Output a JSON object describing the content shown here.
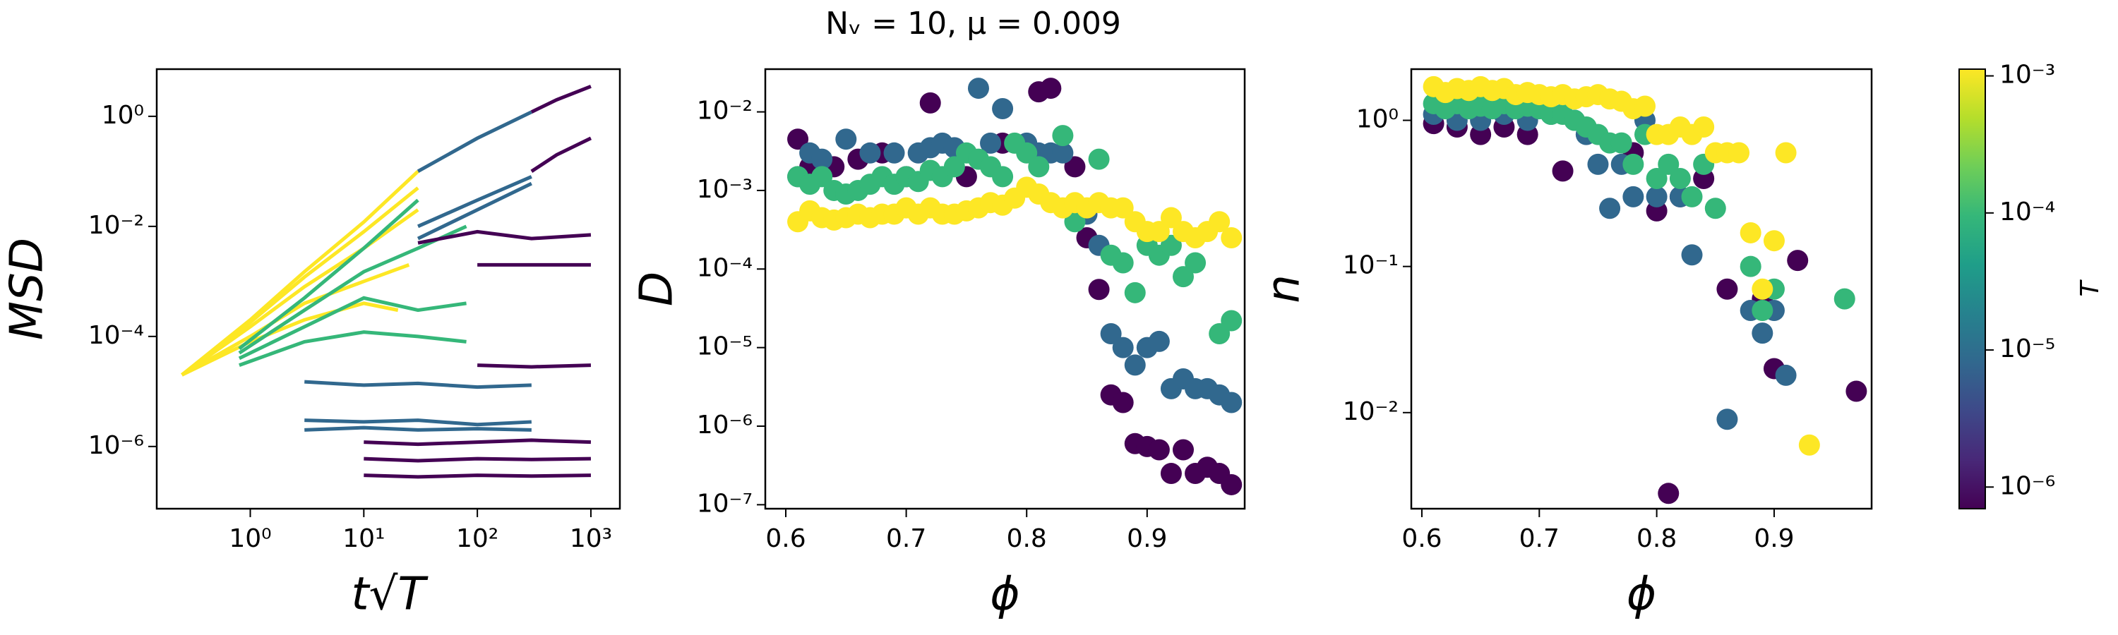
{
  "chart_data": [
    {
      "type": "line",
      "xlabel": "t√T",
      "ylabel": "MSD",
      "xscale": "log",
      "yscale": "log",
      "xlim": [
        0.15,
        1800
      ],
      "ylim": [
        7.4e-08,
        7.2
      ],
      "xticks": [
        {
          "value": 1,
          "label": "10⁰"
        },
        {
          "value": 10,
          "label": "10¹"
        },
        {
          "value": 100,
          "label": "10²"
        },
        {
          "value": 1000,
          "label": "10³"
        }
      ],
      "yticks": [
        {
          "value": 1e-06,
          "label": "10⁻⁶"
        },
        {
          "value": 0.0001,
          "label": "10⁻⁴"
        },
        {
          "value": 0.01,
          "label": "10⁻²"
        },
        {
          "value": 1,
          "label": "10⁰"
        }
      ],
      "series": [
        {
          "color": "#fde725",
          "x": [
            0.25,
            1,
            3,
            10,
            30
          ],
          "values": [
            2e-05,
            0.0002,
            0.0015,
            0.012,
            0.1
          ]
        },
        {
          "color": "#fde725",
          "x": [
            0.25,
            1,
            3,
            10,
            30
          ],
          "values": [
            2e-05,
            0.00018,
            0.0012,
            0.008,
            0.05
          ]
        },
        {
          "color": "#fde725",
          "x": [
            0.25,
            1,
            3,
            10,
            30
          ],
          "values": [
            2e-05,
            0.00015,
            0.0008,
            0.004,
            0.02
          ]
        },
        {
          "color": "#fde725",
          "x": [
            0.25,
            1,
            3,
            10,
            25
          ],
          "values": [
            2e-05,
            0.0001,
            0.0004,
            0.001,
            0.002
          ]
        },
        {
          "color": "#fde725",
          "x": [
            0.25,
            1,
            3,
            10,
            20
          ],
          "values": [
            2e-05,
            8e-05,
            0.0002,
            0.0004,
            0.0003
          ]
        },
        {
          "color": "#35b779",
          "x": [
            0.8,
            3,
            10,
            30
          ],
          "values": [
            6e-05,
            0.0005,
            0.004,
            0.03
          ]
        },
        {
          "color": "#35b779",
          "x": [
            0.8,
            3,
            10,
            30,
            80
          ],
          "values": [
            5e-05,
            0.0003,
            0.0015,
            0.004,
            0.01
          ]
        },
        {
          "color": "#35b779",
          "x": [
            0.8,
            3,
            10,
            30,
            80
          ],
          "values": [
            4e-05,
            0.00015,
            0.0005,
            0.0003,
            0.0004
          ]
        },
        {
          "color": "#35b779",
          "x": [
            0.8,
            3,
            10,
            30,
            80
          ],
          "values": [
            3e-05,
            8e-05,
            0.00012,
            0.0001,
            8e-05
          ]
        },
        {
          "color": "#31688e",
          "x": [
            3,
            10,
            30,
            100,
            300
          ],
          "values": [
            1.5e-05,
            1.3e-05,
            1.4e-05,
            1.2e-05,
            1.3e-05
          ]
        },
        {
          "color": "#31688e",
          "x": [
            3,
            10,
            30,
            100,
            300
          ],
          "values": [
            3e-06,
            2.8e-06,
            3e-06,
            2.5e-06,
            2.8e-06
          ]
        },
        {
          "color": "#31688e",
          "x": [
            3,
            10,
            30,
            100,
            300
          ],
          "values": [
            2e-06,
            2.2e-06,
            2e-06,
            2.1e-06,
            2e-06
          ]
        },
        {
          "color": "#31688e",
          "x": [
            30,
            100,
            300
          ],
          "values": [
            0.1,
            0.4,
            1.2
          ]
        },
        {
          "color": "#31688e",
          "x": [
            30,
            100,
            300
          ],
          "values": [
            0.01,
            0.03,
            0.08
          ]
        },
        {
          "color": "#31688e",
          "x": [
            30,
            100,
            300
          ],
          "values": [
            0.006,
            0.02,
            0.06
          ]
        },
        {
          "color": "#440154",
          "x": [
            300,
            500,
            1000
          ],
          "values": [
            1.2,
            2,
            3.5
          ]
        },
        {
          "color": "#440154",
          "x": [
            300,
            500,
            1000
          ],
          "values": [
            0.1,
            0.2,
            0.4
          ]
        },
        {
          "color": "#440154",
          "x": [
            10,
            30,
            100,
            300,
            1000
          ],
          "values": [
            3e-07,
            2.8e-07,
            3e-07,
            2.9e-07,
            3e-07
          ]
        },
        {
          "color": "#440154",
          "x": [
            10,
            30,
            100,
            300,
            1000
          ],
          "values": [
            6e-07,
            5.5e-07,
            6e-07,
            5.8e-07,
            6e-07
          ]
        },
        {
          "color": "#440154",
          "x": [
            10,
            30,
            100,
            300,
            1000
          ],
          "values": [
            1.2e-06,
            1.1e-06,
            1.2e-06,
            1.3e-06,
            1.2e-06
          ]
        },
        {
          "color": "#440154",
          "x": [
            100,
            300,
            1000
          ],
          "values": [
            3e-05,
            2.8e-05,
            3e-05
          ]
        },
        {
          "color": "#440154",
          "x": [
            30,
            100,
            300,
            1000
          ],
          "values": [
            0.005,
            0.008,
            0.006,
            0.007
          ]
        },
        {
          "color": "#440154",
          "x": [
            100,
            300,
            1000
          ],
          "values": [
            0.002,
            0.002,
            0.002
          ]
        }
      ]
    },
    {
      "type": "scatter",
      "title": "Nᵥ = 10, μ = 0.009",
      "xlabel": "ϕ",
      "ylabel": "D",
      "yscale": "log",
      "xlim": [
        0.583,
        0.981
      ],
      "ylim": [
        8.9e-08,
        0.035
      ],
      "xticks": [
        0.6,
        0.7,
        0.8,
        0.9
      ],
      "yticks": [
        {
          "value": 1e-07,
          "label": "10⁻⁷"
        },
        {
          "value": 1e-06,
          "label": "10⁻⁶"
        },
        {
          "value": 1e-05,
          "label": "10⁻⁵"
        },
        {
          "value": 0.0001,
          "label": "10⁻⁴"
        },
        {
          "value": 0.001,
          "label": "10⁻³"
        },
        {
          "value": 0.01,
          "label": "10⁻²"
        }
      ],
      "series": [
        {
          "color": "#440154",
          "x": [
            0.61,
            0.62,
            0.64,
            0.66,
            0.68,
            0.7,
            0.72,
            0.75,
            0.78,
            0.81,
            0.82,
            0.84,
            0.85,
            0.86,
            0.87,
            0.88,
            0.89,
            0.9,
            0.91,
            0.92,
            0.93,
            0.94,
            0.95,
            0.96,
            0.97
          ],
          "values": [
            0.0045,
            0.002,
            0.002,
            0.0025,
            0.003,
            0.0015,
            0.013,
            0.0015,
            0.004,
            0.018,
            0.02,
            0.002,
            0.00025,
            5.5e-05,
            2.5e-06,
            2e-06,
            6e-07,
            5.5e-07,
            5e-07,
            2.5e-07,
            5e-07,
            2.5e-07,
            3e-07,
            2.5e-07,
            1.8e-07
          ]
        },
        {
          "color": "#31688e",
          "x": [
            0.61,
            0.62,
            0.63,
            0.65,
            0.67,
            0.69,
            0.71,
            0.72,
            0.73,
            0.74,
            0.76,
            0.77,
            0.78,
            0.8,
            0.81,
            0.82,
            0.83,
            0.85,
            0.86,
            0.87,
            0.88,
            0.89,
            0.9,
            0.91,
            0.92,
            0.93,
            0.94,
            0.95,
            0.96,
            0.97
          ],
          "values": [
            0.0015,
            0.003,
            0.0025,
            0.0045,
            0.003,
            0.003,
            0.003,
            0.0035,
            0.004,
            0.0035,
            0.02,
            0.004,
            0.011,
            0.004,
            0.003,
            0.003,
            0.003,
            0.0005,
            0.0002,
            1.5e-05,
            1e-05,
            6e-06,
            1e-05,
            1.2e-05,
            3e-06,
            4e-06,
            3e-06,
            3e-06,
            2.5e-06,
            2e-06
          ]
        },
        {
          "color": "#35b779",
          "x": [
            0.61,
            0.62,
            0.63,
            0.64,
            0.65,
            0.66,
            0.67,
            0.68,
            0.69,
            0.7,
            0.71,
            0.72,
            0.73,
            0.74,
            0.75,
            0.76,
            0.77,
            0.78,
            0.79,
            0.8,
            0.81,
            0.83,
            0.84,
            0.86,
            0.87,
            0.88,
            0.89,
            0.9,
            0.91,
            0.92,
            0.93,
            0.94,
            0.96,
            0.97
          ],
          "values": [
            0.0015,
            0.0012,
            0.0015,
            0.001,
            0.0009,
            0.001,
            0.0012,
            0.0015,
            0.0012,
            0.0015,
            0.0013,
            0.0018,
            0.0015,
            0.002,
            0.003,
            0.0025,
            0.002,
            0.0015,
            0.004,
            0.003,
            0.002,
            0.005,
            0.0004,
            0.0025,
            0.00015,
            0.00012,
            5e-05,
            0.0002,
            0.00015,
            0.0002,
            8e-05,
            0.00012,
            1.5e-05,
            2.2e-05
          ]
        },
        {
          "color": "#fde725",
          "x": [
            0.61,
            0.62,
            0.63,
            0.64,
            0.65,
            0.66,
            0.67,
            0.68,
            0.69,
            0.7,
            0.71,
            0.72,
            0.73,
            0.74,
            0.75,
            0.76,
            0.77,
            0.78,
            0.79,
            0.8,
            0.81,
            0.82,
            0.83,
            0.84,
            0.85,
            0.86,
            0.87,
            0.88,
            0.89,
            0.9,
            0.91,
            0.92,
            0.93,
            0.94,
            0.95,
            0.96,
            0.97
          ],
          "values": [
            0.0004,
            0.00055,
            0.00045,
            0.00042,
            0.00045,
            0.0005,
            0.00045,
            0.0005,
            0.0005,
            0.0006,
            0.0005,
            0.0006,
            0.0005,
            0.0005,
            0.00055,
            0.0006,
            0.0007,
            0.00065,
            0.0008,
            0.0011,
            0.0009,
            0.0007,
            0.0006,
            0.0007,
            0.0006,
            0.0007,
            0.0006,
            0.0006,
            0.0004,
            0.0003,
            0.0003,
            0.00045,
            0.0003,
            0.00025,
            0.0003,
            0.0004,
            0.00025
          ]
        }
      ]
    },
    {
      "type": "scatter",
      "xlabel": "ϕ",
      "ylabel": "n",
      "yscale": "log",
      "xlim": [
        0.591,
        0.983
      ],
      "ylim": [
        0.0022,
        2.24
      ],
      "xticks": [
        0.6,
        0.7,
        0.8,
        0.9
      ],
      "yticks": [
        {
          "value": 0.01,
          "label": "10⁻²"
        },
        {
          "value": 0.1,
          "label": "10⁻¹"
        },
        {
          "value": 1,
          "label": "10⁰"
        }
      ],
      "series": [
        {
          "color": "#440154",
          "x": [
            0.61,
            0.63,
            0.65,
            0.67,
            0.69,
            0.72,
            0.78,
            0.8,
            0.81,
            0.82,
            0.84,
            0.86,
            0.89,
            0.9,
            0.92,
            0.97
          ],
          "values": [
            0.95,
            0.9,
            0.8,
            0.9,
            0.8,
            0.45,
            0.6,
            0.24,
            0.0028,
            0.3,
            0.4,
            0.07,
            0.06,
            0.02,
            0.11,
            0.014
          ]
        },
        {
          "color": "#31688e",
          "x": [
            0.61,
            0.63,
            0.65,
            0.67,
            0.69,
            0.71,
            0.73,
            0.74,
            0.75,
            0.76,
            0.77,
            0.78,
            0.79,
            0.8,
            0.82,
            0.83,
            0.86,
            0.88,
            0.89,
            0.9,
            0.91
          ],
          "values": [
            1.1,
            1.0,
            1.0,
            1.1,
            1.0,
            1.1,
            1.0,
            0.8,
            0.5,
            0.25,
            0.5,
            0.3,
            1.0,
            0.3,
            0.3,
            0.12,
            0.009,
            0.05,
            0.035,
            0.05,
            0.018
          ]
        },
        {
          "color": "#35b779",
          "x": [
            0.61,
            0.62,
            0.63,
            0.64,
            0.65,
            0.66,
            0.67,
            0.68,
            0.69,
            0.7,
            0.71,
            0.72,
            0.73,
            0.74,
            0.75,
            0.76,
            0.77,
            0.78,
            0.79,
            0.8,
            0.81,
            0.82,
            0.83,
            0.84,
            0.85,
            0.88,
            0.89,
            0.9,
            0.96
          ],
          "values": [
            1.3,
            1.2,
            1.3,
            1.2,
            1.25,
            1.2,
            1.3,
            1.2,
            1.25,
            1.2,
            1.1,
            1.1,
            1.0,
            0.9,
            0.8,
            0.7,
            0.7,
            0.5,
            0.8,
            0.4,
            0.5,
            0.4,
            0.3,
            0.5,
            0.25,
            0.1,
            0.05,
            0.07,
            0.06
          ]
        },
        {
          "color": "#fde725",
          "x": [
            0.61,
            0.62,
            0.63,
            0.64,
            0.65,
            0.66,
            0.67,
            0.68,
            0.69,
            0.7,
            0.71,
            0.72,
            0.73,
            0.74,
            0.75,
            0.76,
            0.77,
            0.78,
            0.79,
            0.8,
            0.81,
            0.82,
            0.83,
            0.84,
            0.85,
            0.86,
            0.87,
            0.88,
            0.89,
            0.9,
            0.91,
            0.93
          ],
          "values": [
            1.7,
            1.55,
            1.65,
            1.6,
            1.7,
            1.6,
            1.65,
            1.5,
            1.55,
            1.5,
            1.45,
            1.5,
            1.4,
            1.45,
            1.5,
            1.4,
            1.35,
            1.2,
            1.25,
            0.8,
            0.8,
            0.9,
            0.8,
            0.9,
            0.6,
            0.6,
            0.6,
            0.17,
            0.07,
            0.15,
            0.6,
            0.006
          ]
        }
      ]
    },
    {
      "type": "colorbar",
      "label": "T",
      "yscale": "log",
      "ylim": [
        6.95e-07,
        0.00112
      ],
      "yticks": [
        {
          "value": 1e-06,
          "label": "10⁻⁶"
        },
        {
          "value": 1e-05,
          "label": "10⁻⁵"
        },
        {
          "value": 0.0001,
          "label": "10⁻⁴"
        },
        {
          "value": 0.001,
          "label": "10⁻³"
        }
      ],
      "colormap": [
        "#440154",
        "#482878",
        "#3e4989",
        "#31688e",
        "#26828e",
        "#1f9e89",
        "#35b779",
        "#6ece58",
        "#b5de2b",
        "#fde725"
      ]
    }
  ]
}
